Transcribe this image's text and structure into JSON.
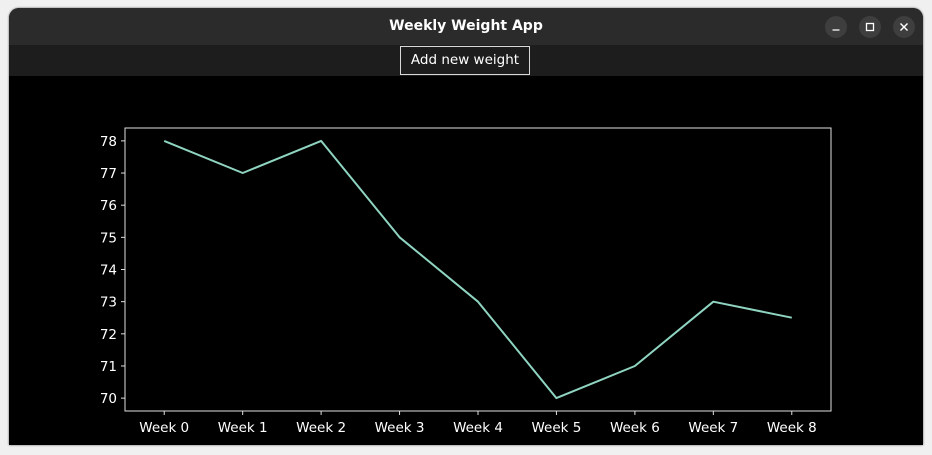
{
  "window": {
    "title": "Weekly Weight App",
    "controls": {
      "minimize_icon": "minimize-icon",
      "maximize_icon": "maximize-icon",
      "close_icon": "close-icon"
    }
  },
  "toolbar": {
    "add_label": "Add new weight"
  },
  "colors": {
    "line": "#8fd4c1",
    "axes": "#e0e0e0",
    "text": "#ffffff",
    "background": "#000000"
  },
  "chart_data": {
    "type": "line",
    "categories": [
      "Week 0",
      "Week 1",
      "Week 2",
      "Week 3",
      "Week 4",
      "Week 5",
      "Week 6",
      "Week 7",
      "Week 8"
    ],
    "values": [
      78,
      77,
      78,
      75,
      73,
      70,
      71,
      73,
      72.5
    ],
    "yticks": [
      70,
      71,
      72,
      73,
      74,
      75,
      76,
      77,
      78
    ],
    "ylim": [
      69.6,
      78.4
    ],
    "title": "",
    "xlabel": "",
    "ylabel": "",
    "grid": false,
    "legend": false
  }
}
